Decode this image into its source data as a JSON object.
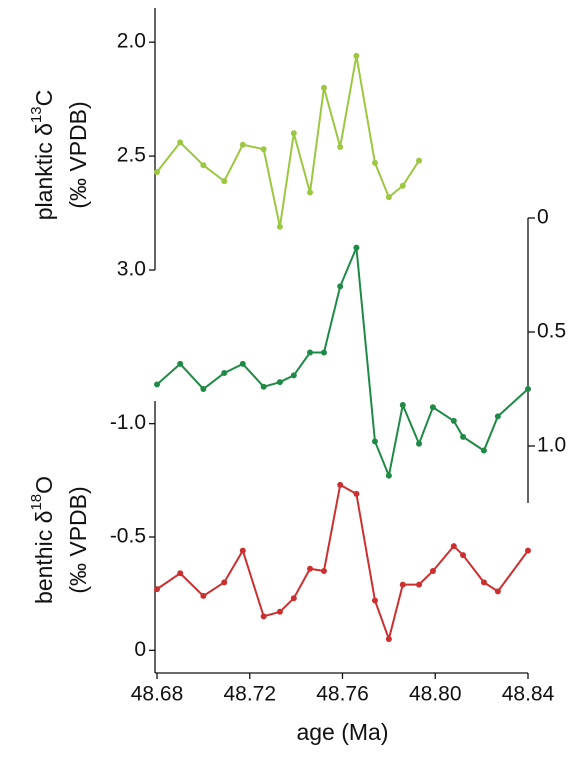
{
  "chart_data": [
    {
      "type": "line",
      "axis_side": "left",
      "ylabel": [
        [
          "planktic δ",
          "13",
          "C"
        ],
        [
          "(‰ VPDB)"
        ]
      ],
      "ylim": [
        3.0,
        1.85
      ],
      "yticks": [
        {
          "value": 2,
          "label": "2.0"
        },
        2.5,
        {
          "value": 3,
          "label": "3.0"
        }
      ],
      "x": [
        48.68,
        48.69,
        48.7,
        48.709,
        48.717,
        48.726,
        48.733,
        48.739,
        48.746,
        48.752,
        48.759,
        48.766,
        48.774,
        48.78,
        48.786,
        48.793
      ],
      "series": [
        {
          "color": "#9cc741",
          "values": [
            2.57,
            2.44,
            2.54,
            2.61,
            2.45,
            2.47,
            2.81,
            2.4,
            2.66,
            2.2,
            2.46,
            2.06,
            2.53,
            2.68,
            2.63,
            2.52
          ]
        }
      ]
    },
    {
      "type": "line",
      "axis_side": "right",
      "ylim": [
        1.25,
        0
      ],
      "yticks": [
        0,
        0.5,
        {
          "value": 1,
          "label": "1.0"
        }
      ],
      "x": [
        48.68,
        48.69,
        48.7,
        48.709,
        48.717,
        48.726,
        48.733,
        48.739,
        48.746,
        48.752,
        48.759,
        48.766,
        48.774,
        48.78,
        48.786,
        48.793,
        48.799,
        48.808,
        48.812,
        48.821,
        48.827,
        48.84
      ],
      "series": [
        {
          "color": "#1f8a45",
          "values": [
            0.73,
            0.64,
            0.75,
            0.68,
            0.64,
            0.74,
            0.72,
            0.69,
            0.59,
            0.59,
            0.3,
            0.13,
            0.98,
            1.13,
            0.82,
            0.99,
            0.83,
            0.89,
            0.96,
            1.02,
            0.87,
            0.75
          ]
        }
      ]
    },
    {
      "type": "line",
      "axis_side": "left",
      "ylabel": [
        [
          "benthic δ",
          "18",
          "O"
        ],
        [
          "(‰ VPDB)"
        ]
      ],
      "ylim": [
        0.1,
        -1.1
      ],
      "yticks": [
        {
          "value": -1,
          "label": "-1.0"
        },
        -0.5,
        0
      ],
      "xlabel": "age (Ma)",
      "xlim": [
        48.68,
        48.84
      ],
      "xticks": [
        48.68,
        48.72,
        48.76,
        {
          "value": 48.8,
          "label": "48.80"
        },
        48.84
      ],
      "x": [
        48.68,
        48.69,
        48.7,
        48.709,
        48.717,
        48.726,
        48.733,
        48.739,
        48.746,
        48.752,
        48.759,
        48.766,
        48.774,
        48.78,
        48.786,
        48.793,
        48.799,
        48.808,
        48.812,
        48.821,
        48.827,
        48.84
      ],
      "series": [
        {
          "color": "#cc2f2f",
          "values": [
            -0.27,
            -0.34,
            -0.24,
            -0.3,
            -0.44,
            -0.15,
            -0.17,
            -0.23,
            -0.36,
            -0.35,
            -0.73,
            -0.69,
            -0.22,
            -0.05,
            -0.29,
            -0.29,
            -0.35,
            -0.46,
            -0.42,
            -0.3,
            -0.26,
            -0.44
          ]
        }
      ]
    }
  ]
}
